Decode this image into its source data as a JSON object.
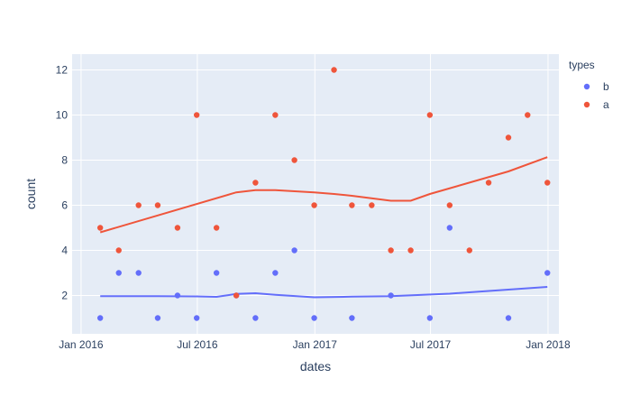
{
  "chart_data": {
    "type": "scatter",
    "xlabel": "dates",
    "ylabel": "count",
    "x_range": [
      "2015-12-18",
      "2018-01-18"
    ],
    "ylim": [
      0.3,
      12.7
    ],
    "x_ticks": [
      {
        "date": "2016-01-01",
        "label": "Jan 2016"
      },
      {
        "date": "2016-07-01",
        "label": "Jul 2016"
      },
      {
        "date": "2017-01-01",
        "label": "Jan 2017"
      },
      {
        "date": "2017-07-01",
        "label": "Jul 2017"
      },
      {
        "date": "2018-01-01",
        "label": "Jan 2018"
      }
    ],
    "y_ticks": [
      2,
      4,
      6,
      8,
      10,
      12
    ],
    "grid": true,
    "legend": {
      "title": "types",
      "placement": "top-right"
    },
    "series": [
      {
        "name": "b",
        "color": "#636efa",
        "points": [
          {
            "x": "2016-01-31",
            "y": 1
          },
          {
            "x": "2016-02-29",
            "y": 3
          },
          {
            "x": "2016-03-31",
            "y": 3
          },
          {
            "x": "2016-04-30",
            "y": 1
          },
          {
            "x": "2016-05-31",
            "y": 2
          },
          {
            "x": "2016-06-30",
            "y": 1
          },
          {
            "x": "2016-07-31",
            "y": 3
          },
          {
            "x": "2016-08-31",
            "y": 2
          },
          {
            "x": "2016-09-30",
            "y": 1
          },
          {
            "x": "2016-10-31",
            "y": 3
          },
          {
            "x": "2016-11-30",
            "y": 4
          },
          {
            "x": "2016-12-31",
            "y": 1
          },
          {
            "x": "2017-02-28",
            "y": 1
          },
          {
            "x": "2017-04-30",
            "y": 2
          },
          {
            "x": "2017-06-30",
            "y": 1
          },
          {
            "x": "2017-07-31",
            "y": 5
          },
          {
            "x": "2017-10-31",
            "y": 1
          },
          {
            "x": "2017-12-31",
            "y": 3
          }
        ],
        "trend": [
          {
            "x": "2016-01-31",
            "y": 1.97
          },
          {
            "x": "2016-04-30",
            "y": 1.97
          },
          {
            "x": "2016-06-30",
            "y": 1.96
          },
          {
            "x": "2016-07-31",
            "y": 1.94
          },
          {
            "x": "2016-08-31",
            "y": 2.07
          },
          {
            "x": "2016-09-30",
            "y": 2.1
          },
          {
            "x": "2016-10-31",
            "y": 2.03
          },
          {
            "x": "2016-12-31",
            "y": 1.92
          },
          {
            "x": "2017-02-28",
            "y": 1.95
          },
          {
            "x": "2017-04-30",
            "y": 1.97
          },
          {
            "x": "2017-07-31",
            "y": 2.08
          },
          {
            "x": "2017-12-31",
            "y": 2.38
          }
        ]
      },
      {
        "name": "a",
        "color": "#ef553b",
        "points": [
          {
            "x": "2016-01-31",
            "y": 5
          },
          {
            "x": "2016-02-29",
            "y": 4
          },
          {
            "x": "2016-03-31",
            "y": 6
          },
          {
            "x": "2016-04-30",
            "y": 6
          },
          {
            "x": "2016-05-31",
            "y": 5
          },
          {
            "x": "2016-06-30",
            "y": 10
          },
          {
            "x": "2016-07-31",
            "y": 5
          },
          {
            "x": "2016-08-31",
            "y": 2
          },
          {
            "x": "2016-09-30",
            "y": 7
          },
          {
            "x": "2016-10-31",
            "y": 10
          },
          {
            "x": "2016-11-30",
            "y": 8
          },
          {
            "x": "2016-12-31",
            "y": 6
          },
          {
            "x": "2017-01-31",
            "y": 12
          },
          {
            "x": "2017-02-28",
            "y": 6
          },
          {
            "x": "2017-03-31",
            "y": 6
          },
          {
            "x": "2017-04-30",
            "y": 4
          },
          {
            "x": "2017-05-31",
            "y": 4
          },
          {
            "x": "2017-06-30",
            "y": 10
          },
          {
            "x": "2017-07-31",
            "y": 6
          },
          {
            "x": "2017-08-31",
            "y": 4
          },
          {
            "x": "2017-09-30",
            "y": 7
          },
          {
            "x": "2017-10-31",
            "y": 9
          },
          {
            "x": "2017-11-30",
            "y": 10
          },
          {
            "x": "2017-12-31",
            "y": 7
          }
        ],
        "trend": [
          {
            "x": "2016-01-31",
            "y": 4.8
          },
          {
            "x": "2016-08-31",
            "y": 6.57
          },
          {
            "x": "2016-09-30",
            "y": 6.67
          },
          {
            "x": "2016-10-31",
            "y": 6.67
          },
          {
            "x": "2016-12-31",
            "y": 6.57
          },
          {
            "x": "2017-01-31",
            "y": 6.5
          },
          {
            "x": "2017-02-28",
            "y": 6.42
          },
          {
            "x": "2017-04-30",
            "y": 6.2
          },
          {
            "x": "2017-05-31",
            "y": 6.2
          },
          {
            "x": "2017-06-30",
            "y": 6.5
          },
          {
            "x": "2017-10-31",
            "y": 7.5
          },
          {
            "x": "2017-12-31",
            "y": 8.13
          }
        ]
      }
    ]
  }
}
